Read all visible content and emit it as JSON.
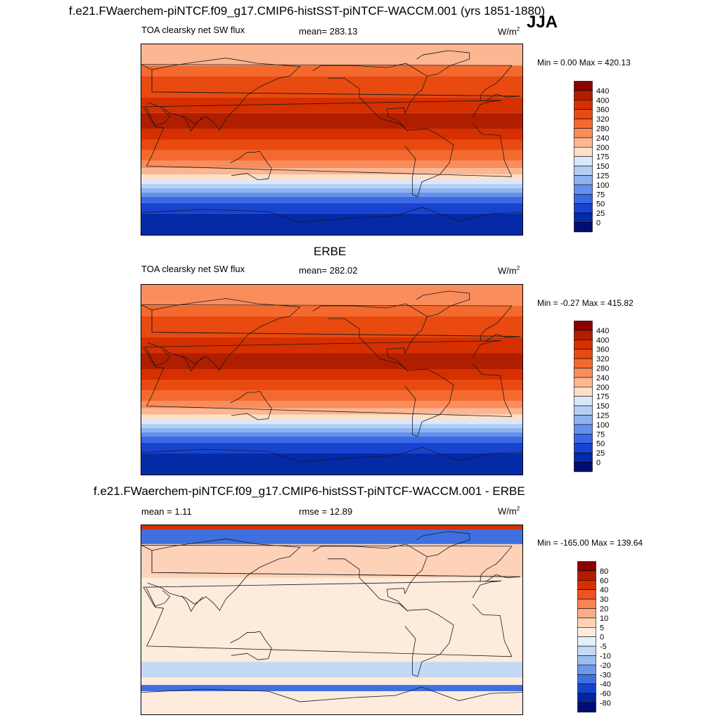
{
  "header": {
    "title": "f.e21.FWaerchem-piNTCF.f09_g17.CMIP6-histSST-piNTCF-WACCM.001 (yrs 1851-1880)",
    "season": "JJA"
  },
  "panels": [
    {
      "id": "model",
      "title": "",
      "left_label": "TOA clearsky net SW flux",
      "center_label": "mean= 283.13",
      "units_base": "W/m",
      "units_exp": "2",
      "minmax": "Min =   0.00 Max = 420.13"
    },
    {
      "id": "obs",
      "title": "ERBE",
      "left_label": "TOA clearsky net SW flux",
      "center_label": "mean= 282.02",
      "units_base": "W/m",
      "units_exp": "2",
      "minmax": "Min =  -0.27 Max = 415.82"
    },
    {
      "id": "diff",
      "title": "f.e21.FWaerchem-piNTCF.f09_g17.CMIP6-histSST-piNTCF-WACCM.001 - ERBE",
      "left_label": "mean =   1.11",
      "center_label": "rmse =  12.89",
      "units_base": "W/m",
      "units_exp": "2",
      "minmax": "Min = -165.00 Max = 139.64"
    }
  ],
  "chart_data": [
    {
      "type": "heatmap",
      "title": "TOA clearsky net SW flux",
      "mean": 283.13,
      "min": 0.0,
      "max": 420.13,
      "units": "W/m2",
      "colorbar": {
        "ticks": [
          "440",
          "400",
          "360",
          "320",
          "280",
          "240",
          "200",
          "175",
          "150",
          "125",
          "100",
          "75",
          "50",
          "25",
          "0"
        ],
        "colors": [
          "#8b0000",
          "#b01e00",
          "#d62f00",
          "#e84a10",
          "#f46a2e",
          "#fa8d5c",
          "#fcb692",
          "#fde0c8",
          "#d9e8fb",
          "#b4cff5",
          "#8db2f0",
          "#6490ec",
          "#3a68e4",
          "#1743d0",
          "#042aa8",
          "#000e74"
        ]
      },
      "lat_bands": [
        {
          "lat": 80,
          "color": "#fcb692"
        },
        {
          "lat": 70,
          "color": "#f46a2e"
        },
        {
          "lat": 60,
          "color": "#e84a10"
        },
        {
          "lat": 40,
          "color": "#d62f00"
        },
        {
          "lat": 25,
          "color": "#b01e00"
        },
        {
          "lat": 10,
          "color": "#d62f00"
        },
        {
          "lat": 0,
          "color": "#e84a10"
        },
        {
          "lat": -10,
          "color": "#f46a2e"
        },
        {
          "lat": -20,
          "color": "#fa8d5c"
        },
        {
          "lat": -27,
          "color": "#fcb692"
        },
        {
          "lat": -33,
          "color": "#fde0c8"
        },
        {
          "lat": -38,
          "color": "#d9e8fb"
        },
        {
          "lat": -42,
          "color": "#b4cff5"
        },
        {
          "lat": -46,
          "color": "#8db2f0"
        },
        {
          "lat": -50,
          "color": "#6490ec"
        },
        {
          "lat": -54,
          "color": "#3a68e4"
        },
        {
          "lat": -60,
          "color": "#1743d0"
        },
        {
          "lat": -70,
          "color": "#042aa8"
        },
        {
          "lat": -90,
          "color": "#042aa8"
        }
      ]
    },
    {
      "type": "heatmap",
      "title": "ERBE",
      "mean": 282.02,
      "min": -0.27,
      "max": 415.82,
      "units": "W/m2",
      "colorbar": {
        "ticks": [
          "440",
          "400",
          "360",
          "320",
          "280",
          "240",
          "200",
          "175",
          "150",
          "125",
          "100",
          "75",
          "50",
          "25",
          "0"
        ],
        "colors": [
          "#8b0000",
          "#b01e00",
          "#d62f00",
          "#e84a10",
          "#f46a2e",
          "#fa8d5c",
          "#fcb692",
          "#fde0c8",
          "#d9e8fb",
          "#b4cff5",
          "#8db2f0",
          "#6490ec",
          "#3a68e4",
          "#1743d0",
          "#042aa8",
          "#000e74"
        ]
      },
      "lat_bands": [
        {
          "lat": 80,
          "color": "#fa8d5c"
        },
        {
          "lat": 70,
          "color": "#f46a2e"
        },
        {
          "lat": 60,
          "color": "#e84a10"
        },
        {
          "lat": 40,
          "color": "#d62f00"
        },
        {
          "lat": 25,
          "color": "#b01e00"
        },
        {
          "lat": 10,
          "color": "#d62f00"
        },
        {
          "lat": 0,
          "color": "#e84a10"
        },
        {
          "lat": -10,
          "color": "#f46a2e"
        },
        {
          "lat": -20,
          "color": "#fa8d5c"
        },
        {
          "lat": -27,
          "color": "#fcb692"
        },
        {
          "lat": -33,
          "color": "#fde0c8"
        },
        {
          "lat": -38,
          "color": "#d9e8fb"
        },
        {
          "lat": -42,
          "color": "#b4cff5"
        },
        {
          "lat": -46,
          "color": "#8db2f0"
        },
        {
          "lat": -50,
          "color": "#6490ec"
        },
        {
          "lat": -54,
          "color": "#3a68e4"
        },
        {
          "lat": -60,
          "color": "#1743d0"
        },
        {
          "lat": -70,
          "color": "#042aa8"
        },
        {
          "lat": -90,
          "color": "#000e74"
        }
      ]
    },
    {
      "type": "heatmap",
      "title": "f.e21.FWaerchem-piNTCF.f09_g17.CMIP6-histSST-piNTCF-WACCM.001 - ERBE",
      "mean": 1.11,
      "rmse": 12.89,
      "min": -165.0,
      "max": 139.64,
      "units": "W/m2",
      "colorbar": {
        "ticks": [
          "80",
          "60",
          "40",
          "30",
          "20",
          "10",
          "5",
          "0",
          "-5",
          "-10",
          "-20",
          "-30",
          "-40",
          "-60",
          "-80"
        ],
        "colors": [
          "#8b0000",
          "#b01e00",
          "#d62f00",
          "#ef5420",
          "#f88452",
          "#fbae86",
          "#fdd2b8",
          "#fdebdc",
          "#e3eefb",
          "#c3d9f5",
          "#9dbdf0",
          "#6f98ea",
          "#4070e0",
          "#1444cc",
          "#0424a0",
          "#000e74"
        ]
      },
      "lat_bands": [
        {
          "lat": 90,
          "color": "#d62f00"
        },
        {
          "lat": 86,
          "color": "#4070e0"
        },
        {
          "lat": 72,
          "color": "#fdd2b8"
        },
        {
          "lat": 40,
          "color": "#fdebdc"
        },
        {
          "lat": -40,
          "color": "#c3d9f5"
        },
        {
          "lat": -55,
          "color": "#fdebdc"
        },
        {
          "lat": -62,
          "color": "#4070e0"
        },
        {
          "lat": -68,
          "color": "#fdebdc"
        },
        {
          "lat": -90,
          "color": "#fdebdc"
        }
      ]
    }
  ]
}
